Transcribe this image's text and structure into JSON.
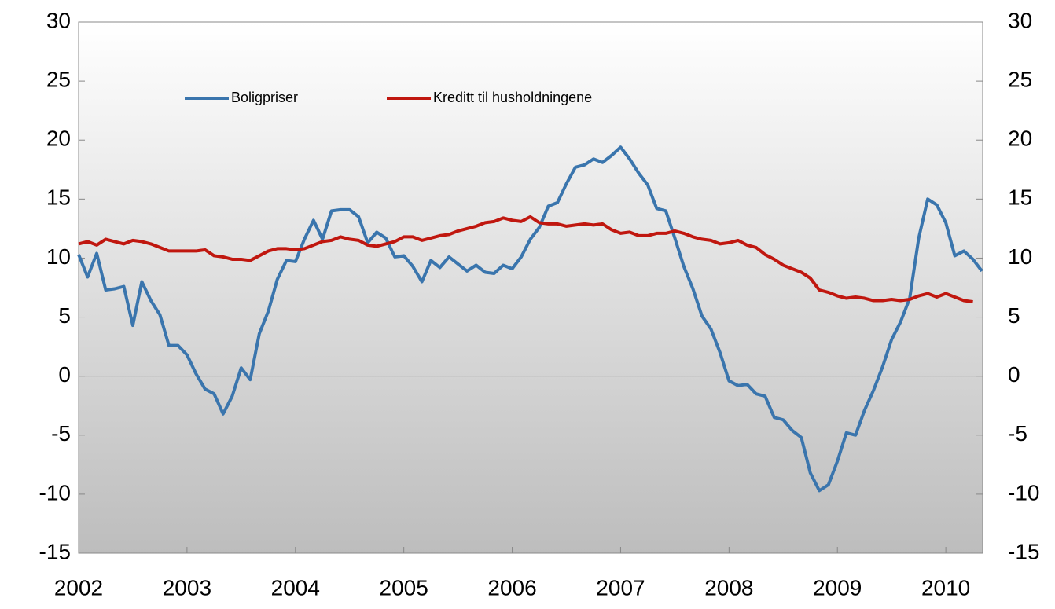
{
  "chart_data": {
    "type": "line",
    "x": [
      2002,
      2002.083,
      2002.167,
      2002.25,
      2002.333,
      2002.417,
      2002.5,
      2002.583,
      2002.667,
      2002.75,
      2002.833,
      2002.917,
      2003,
      2003.083,
      2003.167,
      2003.25,
      2003.333,
      2003.417,
      2003.5,
      2003.583,
      2003.667,
      2003.75,
      2003.833,
      2003.917,
      2004,
      2004.083,
      2004.167,
      2004.25,
      2004.333,
      2004.417,
      2004.5,
      2004.583,
      2004.667,
      2004.75,
      2004.833,
      2004.917,
      2005,
      2005.083,
      2005.167,
      2005.25,
      2005.333,
      2005.417,
      2005.5,
      2005.583,
      2005.667,
      2005.75,
      2005.833,
      2005.917,
      2006,
      2006.083,
      2006.167,
      2006.25,
      2006.333,
      2006.417,
      2006.5,
      2006.583,
      2006.667,
      2006.75,
      2006.833,
      2006.917,
      2007,
      2007.083,
      2007.167,
      2007.25,
      2007.333,
      2007.417,
      2007.5,
      2007.583,
      2007.667,
      2007.75,
      2007.833,
      2007.917,
      2008,
      2008.083,
      2008.167,
      2008.25,
      2008.333,
      2008.417,
      2008.5,
      2008.583,
      2008.667,
      2008.75,
      2008.833,
      2008.917,
      2009,
      2009.083,
      2009.167,
      2009.25,
      2009.333,
      2009.417,
      2009.5,
      2009.583,
      2009.667,
      2009.75,
      2009.833,
      2009.917,
      2010,
      2010.083,
      2010.167,
      2010.25,
      2010.333
    ],
    "series": [
      {
        "name": "Boligpriser",
        "color": "#3a75ad",
        "values": [
          10.3,
          8.4,
          10.4,
          7.3,
          7.4,
          7.6,
          4.3,
          8.0,
          6.4,
          5.2,
          2.6,
          2.6,
          1.8,
          0.2,
          -1.1,
          -1.5,
          -3.2,
          -1.7,
          0.7,
          -0.3,
          3.6,
          5.5,
          8.2,
          9.8,
          9.7,
          11.6,
          13.2,
          11.6,
          14.0,
          14.1,
          14.1,
          13.5,
          11.3,
          12.2,
          11.7,
          10.1,
          10.2,
          9.3,
          8.0,
          9.8,
          9.2,
          10.1,
          9.5,
          8.9,
          9.4,
          8.8,
          8.7,
          9.4,
          9.1,
          10.1,
          11.6,
          12.6,
          14.4,
          14.7,
          16.3,
          17.7,
          17.9,
          18.4,
          18.1,
          18.7,
          19.4,
          18.4,
          17.2,
          16.2,
          14.2,
          14.0,
          11.7,
          9.3,
          7.4,
          5.1,
          4.0,
          2.0,
          -0.4,
          -0.8,
          -0.7,
          -1.5,
          -1.7,
          -3.5,
          -3.7,
          -4.6,
          -5.2,
          -8.2,
          -9.7,
          -9.2,
          -7.2,
          -4.8,
          -5.0,
          -2.9,
          -1.2,
          0.8,
          3.1,
          4.6,
          6.6,
          11.7,
          15.0,
          14.5,
          13.0,
          10.2,
          10.6,
          9.9,
          8.9
        ]
      },
      {
        "name": "Kreditt til husholdningene",
        "color": "#c0170f",
        "values": [
          11.2,
          11.4,
          11.1,
          11.6,
          11.4,
          11.2,
          11.5,
          11.4,
          11.2,
          10.9,
          10.6,
          10.6,
          10.6,
          10.6,
          10.7,
          10.2,
          10.1,
          9.9,
          9.9,
          9.8,
          10.2,
          10.6,
          10.8,
          10.8,
          10.7,
          10.8,
          11.1,
          11.4,
          11.5,
          11.8,
          11.6,
          11.5,
          11.1,
          11.0,
          11.2,
          11.4,
          11.8,
          11.8,
          11.5,
          11.7,
          11.9,
          12.0,
          12.3,
          12.5,
          12.7,
          13.0,
          13.1,
          13.4,
          13.2,
          13.1,
          13.5,
          13.0,
          12.9,
          12.9,
          12.7,
          12.8,
          12.9,
          12.8,
          12.9,
          12.4,
          12.1,
          12.2,
          11.9,
          11.9,
          12.1,
          12.1,
          12.3,
          12.1,
          11.8,
          11.6,
          11.5,
          11.2,
          11.3,
          11.5,
          11.1,
          10.9,
          10.3,
          9.9,
          9.4,
          9.1,
          8.8,
          8.3,
          7.3,
          7.1,
          6.8,
          6.6,
          6.7,
          6.6,
          6.4,
          6.4,
          6.5,
          6.4,
          6.5,
          6.8,
          7.0,
          6.7,
          7.0,
          6.7,
          6.4,
          6.3,
          null
        ]
      }
    ],
    "xlim": [
      2002,
      2010.34
    ],
    "xticks": [
      2002,
      2003,
      2004,
      2005,
      2006,
      2007,
      2008,
      2009,
      2010
    ],
    "ylim": [
      -15,
      30
    ],
    "yticks": [
      -15,
      -10,
      -5,
      0,
      5,
      10,
      15,
      20,
      25,
      30
    ],
    "y2lim": [
      -15,
      30
    ],
    "y2ticks": [
      -15,
      -10,
      -5,
      0,
      5,
      10,
      15,
      20,
      25,
      30
    ],
    "legend": "upper left"
  }
}
